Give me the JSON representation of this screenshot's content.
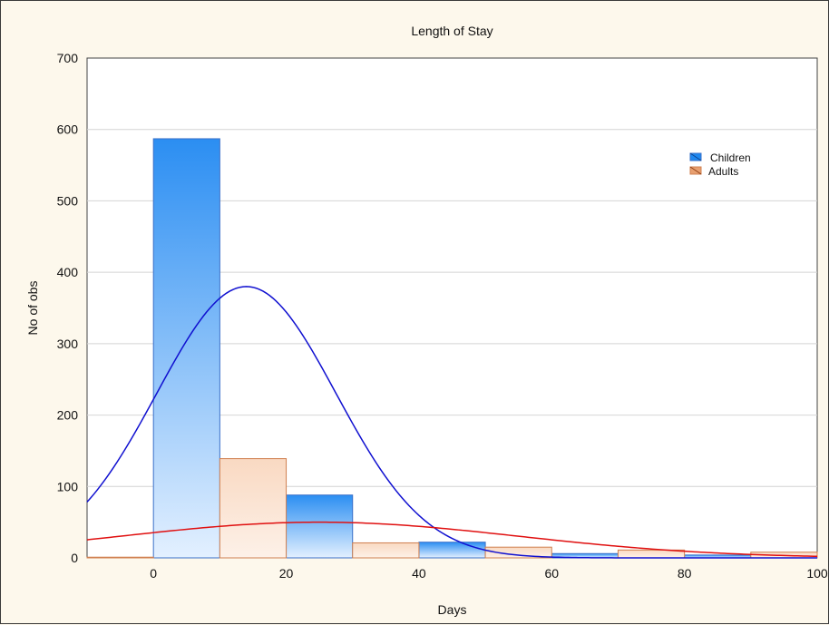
{
  "chart_data": {
    "type": "bar",
    "title": "Length of Stay",
    "xlabel": "Days",
    "ylabel": "No of obs",
    "xlim": [
      -10,
      100
    ],
    "ylim": [
      0,
      700
    ],
    "x_ticks": [
      0,
      20,
      40,
      60,
      80,
      100
    ],
    "y_ticks": [
      0,
      100,
      200,
      300,
      400,
      500,
      600,
      700
    ],
    "grid": true,
    "legend_position": "top-right",
    "bin_width": 10,
    "bins": [
      {
        "from": -10,
        "to": 0
      },
      {
        "from": 0,
        "to": 10
      },
      {
        "from": 10,
        "to": 20
      },
      {
        "from": 20,
        "to": 30
      },
      {
        "from": 30,
        "to": 40
      },
      {
        "from": 40,
        "to": 50
      },
      {
        "from": 50,
        "to": 60
      },
      {
        "from": 60,
        "to": 70
      },
      {
        "from": 70,
        "to": 80
      },
      {
        "from": 80,
        "to": 90
      },
      {
        "from": 90,
        "to": 100
      }
    ],
    "series": [
      {
        "name": "Children",
        "color": "#1e88f0",
        "values": [
          0,
          587,
          0,
          88,
          0,
          22,
          0,
          6,
          0,
          4,
          0
        ],
        "curve_color": "#1010d0"
      },
      {
        "name": "Adults",
        "color": "#e8a070",
        "values": [
          1,
          0,
          139,
          0,
          21,
          0,
          15,
          0,
          11,
          0,
          8
        ],
        "curve_color": "#e01010"
      }
    ],
    "fitted_curves": [
      {
        "series": "Children",
        "type": "normal",
        "peak_x": 14,
        "peak_y": 380
      },
      {
        "series": "Adults",
        "type": "normal",
        "peak_x": 25,
        "peak_y": 50
      }
    ]
  }
}
